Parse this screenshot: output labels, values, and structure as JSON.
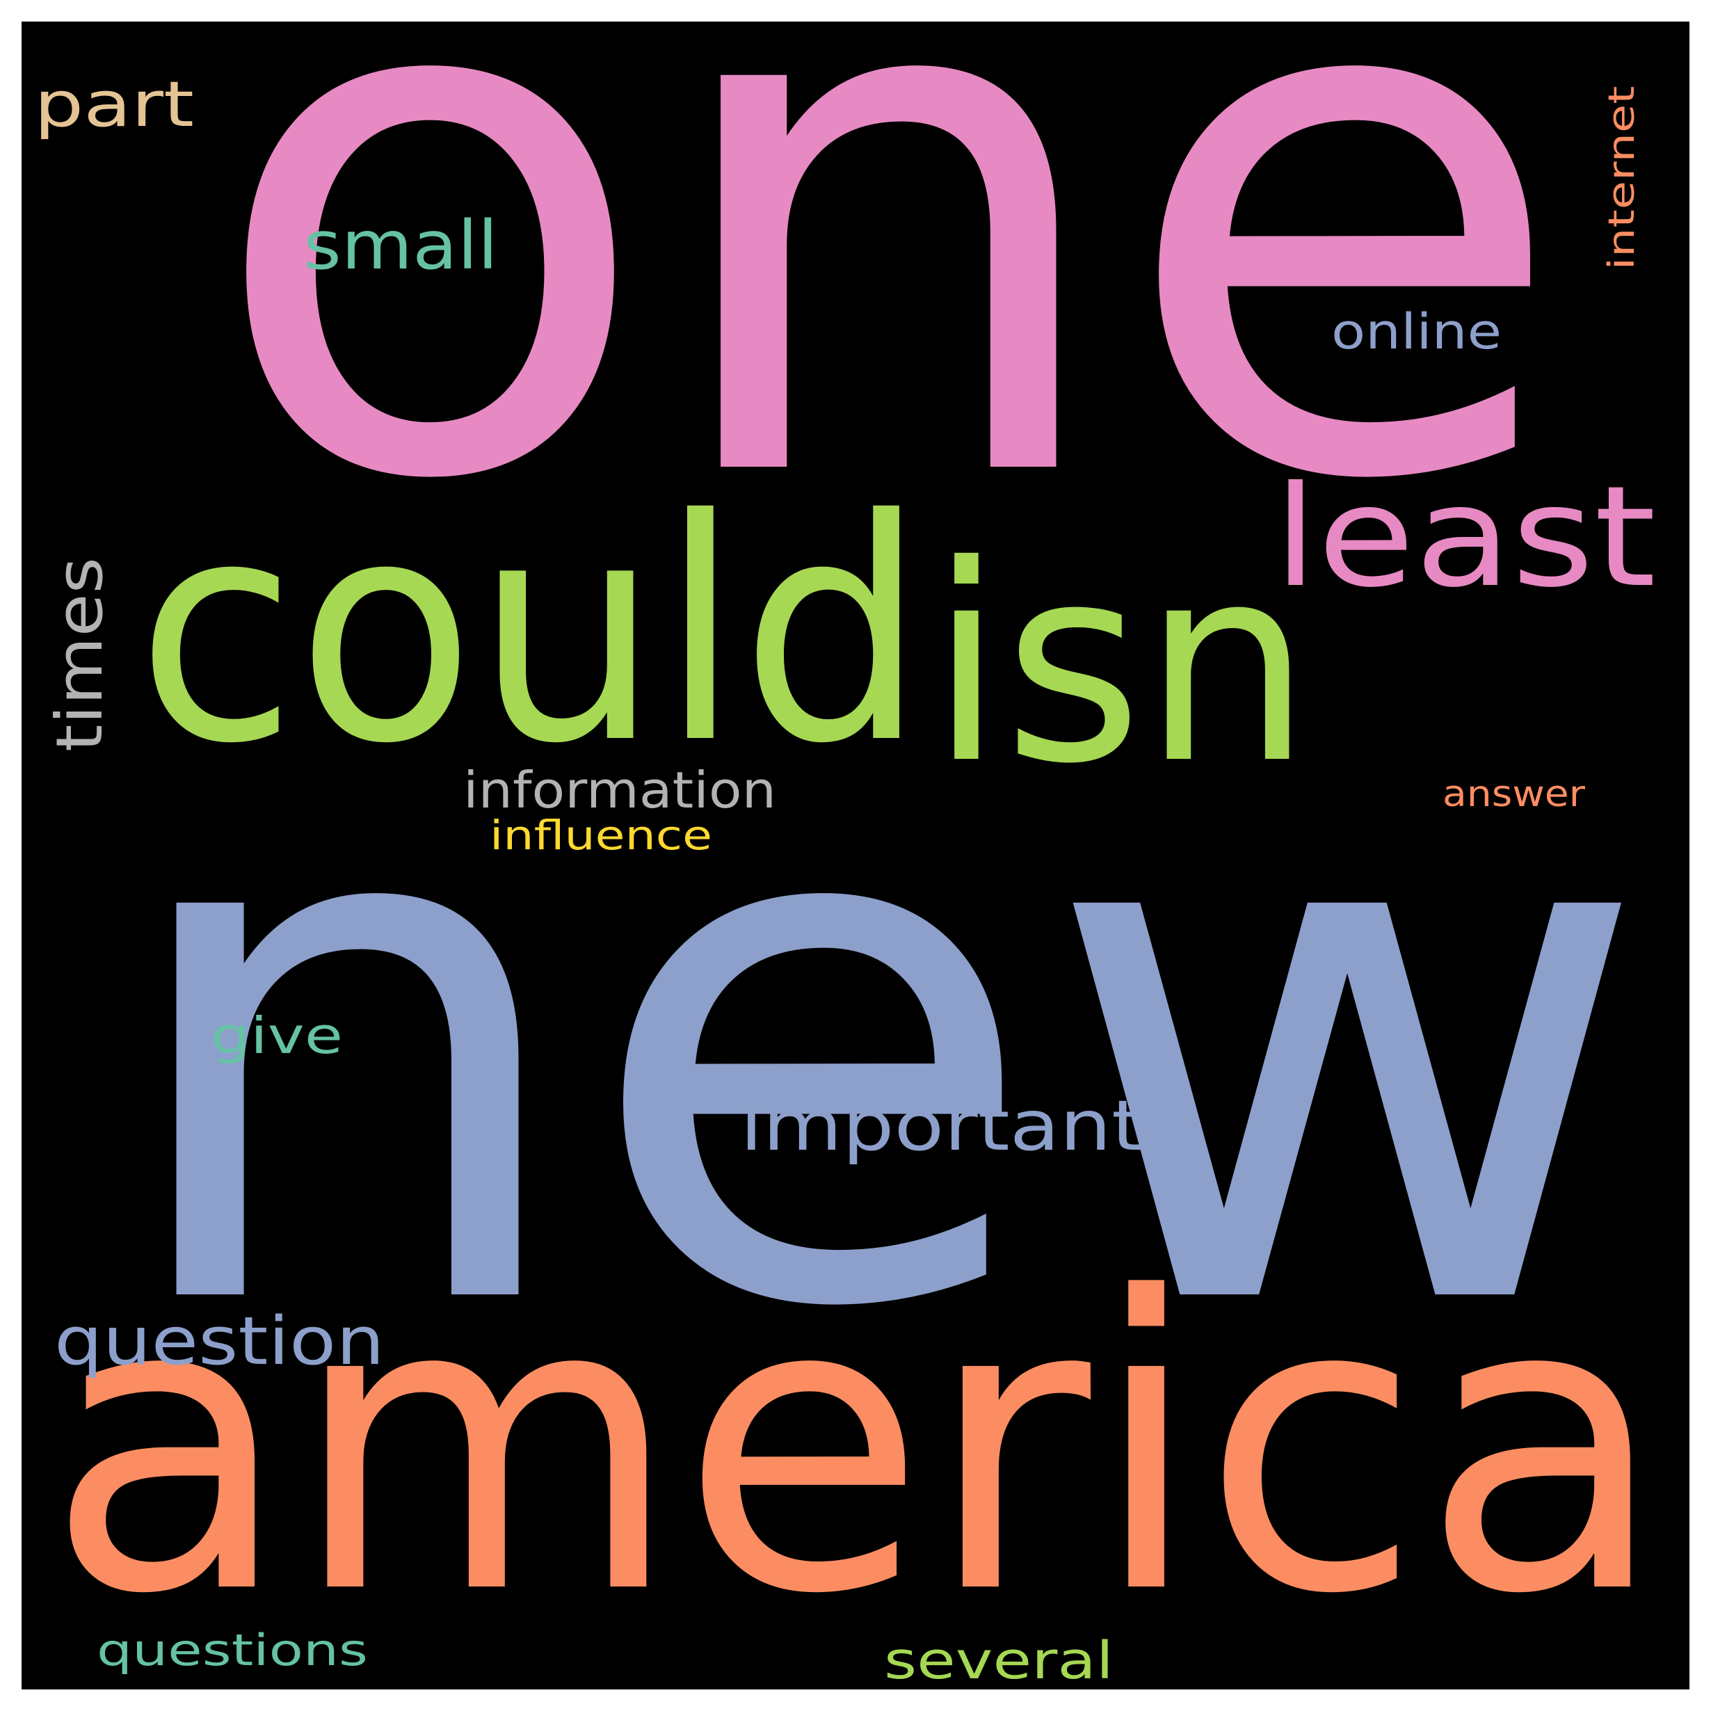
{
  "background_color": "#000000",
  "words": [
    {
      "key": "one",
      "text": "one",
      "color": "#e78ac3"
    },
    {
      "key": "new",
      "text": "new",
      "color": "#8da0cb"
    },
    {
      "key": "america",
      "text": "america",
      "color": "#fc8d62"
    },
    {
      "key": "could",
      "text": "could",
      "color": "#a6d854"
    },
    {
      "key": "isn",
      "text": "isn",
      "color": "#a6d854"
    },
    {
      "key": "least",
      "text": "least",
      "color": "#e78ac3"
    },
    {
      "key": "times",
      "text": "times",
      "color": "#b3b3b3"
    },
    {
      "key": "small",
      "text": "small",
      "color": "#66c2a5"
    },
    {
      "key": "part",
      "text": "part",
      "color": "#e5c494"
    },
    {
      "key": "online",
      "text": "online",
      "color": "#8da0cb"
    },
    {
      "key": "internet",
      "text": "internet",
      "color": "#fc8d62"
    },
    {
      "key": "information",
      "text": "information",
      "color": "#b3b3b3"
    },
    {
      "key": "influence",
      "text": "influence",
      "color": "#ffd92f"
    },
    {
      "key": "answer",
      "text": "answer",
      "color": "#fc8d62"
    },
    {
      "key": "give",
      "text": "give",
      "color": "#66c2a5"
    },
    {
      "key": "important",
      "text": "important",
      "color": "#8da0cb"
    },
    {
      "key": "question",
      "text": "question",
      "color": "#8da0cb"
    },
    {
      "key": "questions",
      "text": "questions",
      "color": "#66c2a5"
    },
    {
      "key": "several",
      "text": "several",
      "color": "#a6d854"
    }
  ]
}
